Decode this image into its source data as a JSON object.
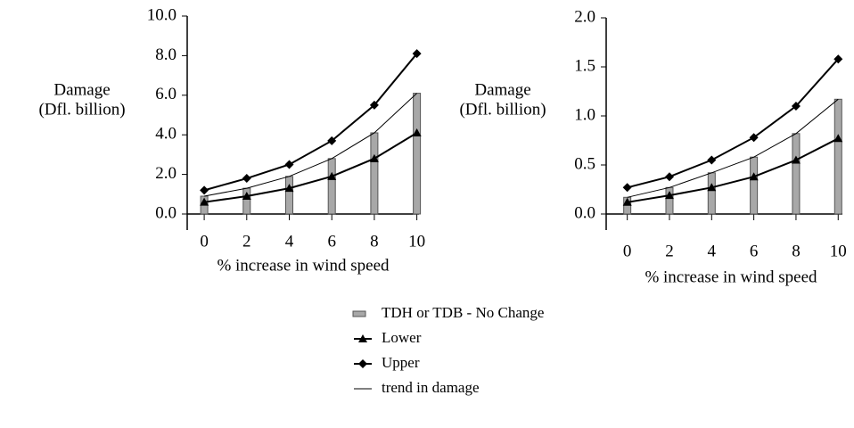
{
  "chart_data": [
    {
      "type": "combo",
      "ylabel": [
        "Damage",
        "(Dfl. billion)"
      ],
      "xlabel": "% increase in wind speed",
      "x": [
        0,
        2,
        4,
        6,
        8,
        10
      ],
      "xlim": [
        -0.8,
        10.1
      ],
      "xticks": [
        0,
        2,
        4,
        6,
        8,
        10
      ],
      "ylim": [
        0,
        10
      ],
      "yticks": [
        {
          "value": 0,
          "label": "0.0"
        },
        {
          "value": 2,
          "label": "2.0"
        },
        {
          "value": 4,
          "label": "4.0"
        },
        {
          "value": 6,
          "label": "6.0"
        },
        {
          "value": 8,
          "label": "8.0"
        },
        {
          "value": 10,
          "label": "10.0"
        }
      ],
      "series": [
        {
          "name": "TDH or TDB - No Change",
          "type": "bar",
          "color": "#a8a8a8",
          "values": [
            0.9,
            1.3,
            1.9,
            2.8,
            4.1,
            6.1
          ]
        },
        {
          "name": "Lower",
          "type": "line",
          "marker": "triangle",
          "color": "#000000",
          "values": [
            0.6,
            0.9,
            1.3,
            1.9,
            2.8,
            4.1
          ]
        },
        {
          "name": "Upper",
          "type": "line",
          "marker": "diamond",
          "color": "#000000",
          "values": [
            1.2,
            1.8,
            2.5,
            3.7,
            5.5,
            8.1
          ]
        },
        {
          "name": "trend in damage",
          "type": "line",
          "marker": "none",
          "color": "#000000",
          "values": [
            0.9,
            1.3,
            1.9,
            2.8,
            4.1,
            6.1
          ]
        }
      ]
    },
    {
      "type": "combo",
      "ylabel": [
        "Damage",
        "(Dfl. billion)"
      ],
      "xlabel": "% increase in wind speed",
      "x": [
        0,
        2,
        4,
        6,
        8,
        10
      ],
      "xlim": [
        -1,
        10.2
      ],
      "xticks": [
        0,
        2,
        4,
        6,
        8,
        10
      ],
      "ylim": [
        0,
        2
      ],
      "yticks": [
        {
          "value": 0,
          "label": "0.0"
        },
        {
          "value": 0.5,
          "label": "0.5"
        },
        {
          "value": 1,
          "label": "1.0"
        },
        {
          "value": 1.5,
          "label": "1.5"
        },
        {
          "value": 2,
          "label": "2.0"
        }
      ],
      "series": [
        {
          "name": "TDH or TDB - No Change",
          "type": "bar",
          "color": "#a8a8a8",
          "values": [
            0.17,
            0.27,
            0.42,
            0.58,
            0.82,
            1.17
          ]
        },
        {
          "name": "Lower",
          "type": "line",
          "marker": "triangle",
          "color": "#000000",
          "values": [
            0.12,
            0.19,
            0.27,
            0.38,
            0.55,
            0.77
          ]
        },
        {
          "name": "Upper",
          "type": "line",
          "marker": "diamond",
          "color": "#000000",
          "values": [
            0.27,
            0.38,
            0.55,
            0.78,
            1.1,
            1.58
          ]
        },
        {
          "name": "trend in damage",
          "type": "line",
          "marker": "none",
          "color": "#000000",
          "values": [
            0.17,
            0.27,
            0.42,
            0.58,
            0.82,
            1.17
          ]
        }
      ]
    }
  ]
}
